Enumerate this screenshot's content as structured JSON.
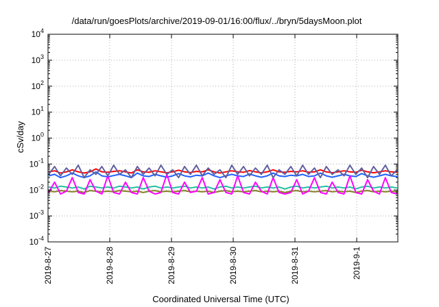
{
  "chart_data": {
    "type": "line",
    "title": "/data/run/goesPlots/archive/2019-09-01/16:00/flux/../bryn/5daysMoon.plot",
    "xlabel": "Coordinated Universal Time (UTC)",
    "ylabel": "cSv/day",
    "yscale": "log",
    "ylim": [
      0.0001,
      10000
    ],
    "xlim": [
      "2019-08-27",
      "2019-09-01T16:00"
    ],
    "grid": true,
    "yticks": [
      {
        "value": 0.0001,
        "base": "10",
        "exp": "-4"
      },
      {
        "value": 0.001,
        "base": "10",
        "exp": "-3"
      },
      {
        "value": 0.01,
        "base": "10",
        "exp": "-2"
      },
      {
        "value": 0.1,
        "base": "10",
        "exp": "-1"
      },
      {
        "value": 1,
        "base": "10",
        "exp": "0"
      },
      {
        "value": 10,
        "base": "10",
        "exp": "1"
      },
      {
        "value": 100,
        "base": "10",
        "exp": "2"
      },
      {
        "value": 1000,
        "base": "10",
        "exp": "3"
      },
      {
        "value": 10000,
        "base": "10",
        "exp": "4"
      }
    ],
    "xticks": [
      "2019-8-27",
      "2019-8-28",
      "2019-8-29",
      "2019-8-30",
      "2019-8-31",
      "2019-9-1"
    ],
    "series": [
      {
        "color": "#ff0000",
        "values": [
          0.05,
          0.055,
          0.045,
          0.05,
          0.06,
          0.05,
          0.045,
          0.05,
          0.065,
          0.05,
          0.048,
          0.052,
          0.055,
          0.05,
          0.045,
          0.06,
          0.05,
          0.048,
          0.055,
          0.05,
          0.046,
          0.05,
          0.058,
          0.05,
          0.047,
          0.052,
          0.05,
          0.06,
          0.05,
          0.045,
          0.05,
          0.055,
          0.05,
          0.048,
          0.056,
          0.05,
          0.046,
          0.05,
          0.06,
          0.05,
          0.048,
          0.052,
          0.05,
          0.055,
          0.048,
          0.05,
          0.06,
          0.05,
          0.046,
          0.05,
          0.055,
          0.05,
          0.048,
          0.058,
          0.05,
          0.046,
          0.05,
          0.055,
          0.05,
          0.048
        ]
      },
      {
        "color": "#2060ff",
        "values": [
          0.035,
          0.04,
          0.03,
          0.035,
          0.045,
          0.035,
          0.03,
          0.035,
          0.05,
          0.035,
          0.032,
          0.036,
          0.04,
          0.035,
          0.03,
          0.045,
          0.035,
          0.033,
          0.04,
          0.035,
          0.031,
          0.035,
          0.043,
          0.035,
          0.032,
          0.037,
          0.035,
          0.045,
          0.035,
          0.03,
          0.035,
          0.04,
          0.035,
          0.033,
          0.041,
          0.035,
          0.031,
          0.035,
          0.045,
          0.035,
          0.033,
          0.037,
          0.035,
          0.04,
          0.033,
          0.035,
          0.045,
          0.035,
          0.031,
          0.035,
          0.04,
          0.035,
          0.033,
          0.043,
          0.035,
          0.031,
          0.035,
          0.04,
          0.035,
          0.033
        ]
      },
      {
        "color": "#20c0a0",
        "values": [
          0.013,
          0.012,
          0.014,
          0.013,
          0.012,
          0.013,
          0.011,
          0.014,
          0.013,
          0.012,
          0.013,
          0.012,
          0.014,
          0.013,
          0.012,
          0.013,
          0.011,
          0.013,
          0.014,
          0.012,
          0.013,
          0.012,
          0.013,
          0.014,
          0.012,
          0.013,
          0.012,
          0.013,
          0.011,
          0.013,
          0.014,
          0.012,
          0.013,
          0.012,
          0.013,
          0.014,
          0.012,
          0.013,
          0.012,
          0.013,
          0.011,
          0.013,
          0.014,
          0.012,
          0.013,
          0.012,
          0.013,
          0.014,
          0.012,
          0.013,
          0.012,
          0.013,
          0.011,
          0.013,
          0.014,
          0.012,
          0.013,
          0.012,
          0.013,
          0.012
        ]
      },
      {
        "color": "#808020",
        "values": [
          0.009,
          0.0085,
          0.0095,
          0.009,
          0.0085,
          0.009,
          0.008,
          0.0095,
          0.009,
          0.0085,
          0.009,
          0.0085,
          0.0095,
          0.009,
          0.0085,
          0.009,
          0.008,
          0.009,
          0.0095,
          0.0085,
          0.009,
          0.0085,
          0.009,
          0.0095,
          0.0085,
          0.009,
          0.0085,
          0.009,
          0.008,
          0.009,
          0.0095,
          0.0085,
          0.009,
          0.0085,
          0.009,
          0.0095,
          0.0085,
          0.009,
          0.0085,
          0.009,
          0.008,
          0.009,
          0.0095,
          0.0085,
          0.009,
          0.0085,
          0.009,
          0.0095,
          0.0085,
          0.009,
          0.0085,
          0.009,
          0.008,
          0.009,
          0.0095,
          0.0085,
          0.009,
          0.0085,
          0.009,
          0.0085
        ]
      },
      {
        "color": "#ff00ff",
        "values": [
          0.008,
          0.02,
          0.007,
          0.009,
          0.03,
          0.008,
          0.007,
          0.025,
          0.009,
          0.007,
          0.035,
          0.008,
          0.007,
          0.02,
          0.008,
          0.007,
          0.03,
          0.009,
          0.007,
          0.008,
          0.04,
          0.008,
          0.007,
          0.02,
          0.008,
          0.009,
          0.03,
          0.007,
          0.008,
          0.025,
          0.008,
          0.007,
          0.035,
          0.008,
          0.007,
          0.02,
          0.009,
          0.007,
          0.03,
          0.008,
          0.007,
          0.008,
          0.025,
          0.007,
          0.009,
          0.03,
          0.008,
          0.007,
          0.02,
          0.008,
          0.007,
          0.035,
          0.008,
          0.007,
          0.025,
          0.009,
          0.007,
          0.03,
          0.008,
          0.007
        ]
      },
      {
        "color": "#6060a0",
        "values": [
          0.04,
          0.08,
          0.035,
          0.07,
          0.04,
          0.09,
          0.03,
          0.06,
          0.04,
          0.08,
          0.035,
          0.09,
          0.04,
          0.06,
          0.03,
          0.08,
          0.04,
          0.07,
          0.035,
          0.09,
          0.04,
          0.06,
          0.03,
          0.08,
          0.04,
          0.09,
          0.035,
          0.07,
          0.04,
          0.06,
          0.03,
          0.09,
          0.04,
          0.08,
          0.035,
          0.07,
          0.04,
          0.09,
          0.03,
          0.06,
          0.04,
          0.08,
          0.035,
          0.09,
          0.04,
          0.07,
          0.03,
          0.08,
          0.04,
          0.06,
          0.035,
          0.09,
          0.04,
          0.07,
          0.03,
          0.08,
          0.04,
          0.09,
          0.035,
          0.06
        ]
      }
    ]
  }
}
